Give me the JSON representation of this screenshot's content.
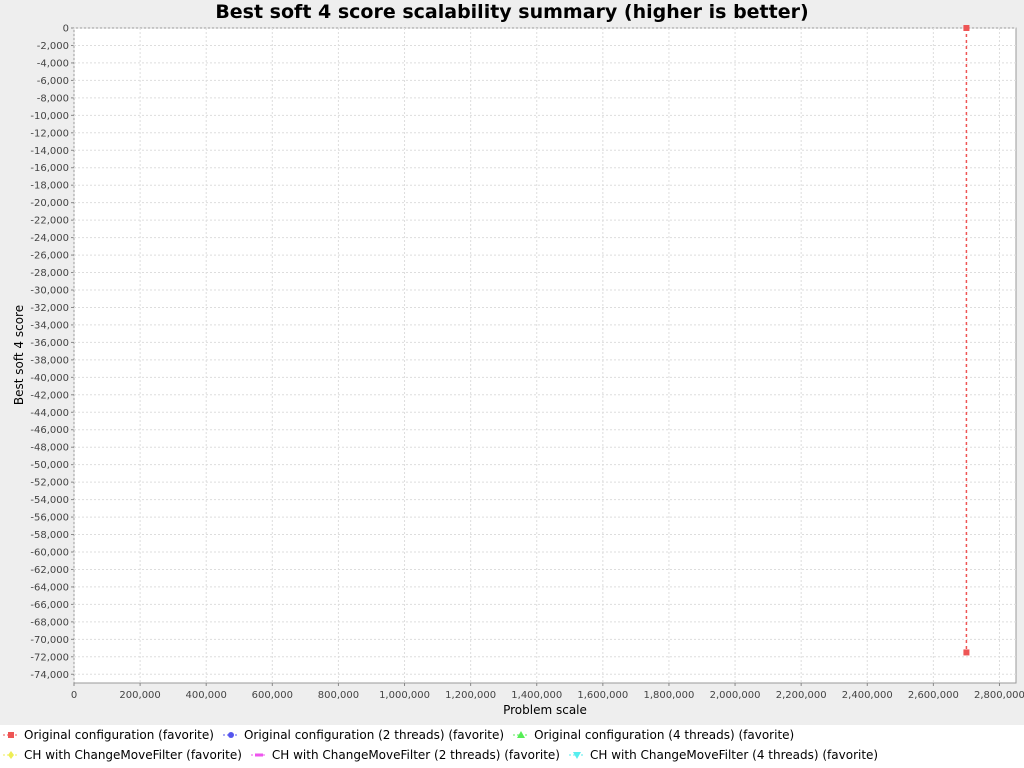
{
  "chart_data": {
    "type": "line",
    "title": "Best soft 4 score scalability summary (higher is better)",
    "xlabel": "Problem scale",
    "ylabel": "Best soft 4 score",
    "xlim": [
      0,
      2850000
    ],
    "ylim": [
      -75000,
      0
    ],
    "x_ticks": [
      "0",
      "200,000",
      "400,000",
      "600,000",
      "800,000",
      "1,000,000",
      "1,200,000",
      "1,400,000",
      "1,600,000",
      "1,800,000",
      "2,000,000",
      "2,200,000",
      "2,400,000",
      "2,600,000",
      "2,800,000"
    ],
    "y_ticks": [
      "0",
      "-2,000",
      "-4,000",
      "-6,000",
      "-8,000",
      "-10,000",
      "-12,000",
      "-14,000",
      "-16,000",
      "-18,000",
      "-20,000",
      "-22,000",
      "-24,000",
      "-26,000",
      "-28,000",
      "-30,000",
      "-32,000",
      "-34,000",
      "-36,000",
      "-38,000",
      "-40,000",
      "-42,000",
      "-44,000",
      "-46,000",
      "-48,000",
      "-50,000",
      "-52,000",
      "-54,000",
      "-56,000",
      "-58,000",
      "-60,000",
      "-62,000",
      "-64,000",
      "-66,000",
      "-68,000",
      "-70,000",
      "-72,000",
      "-74,000"
    ],
    "grid": true,
    "legend_position": "bottom",
    "series": [
      {
        "name": "Original configuration (favorite)",
        "color": "#ee5555",
        "marker": "square",
        "points": [
          [
            2700000,
            0
          ],
          [
            2700000,
            -71500
          ]
        ]
      },
      {
        "name": "Original configuration (2 threads) (favorite)",
        "color": "#5555ee",
        "marker": "circle",
        "points": []
      },
      {
        "name": "Original configuration (4 threads) (favorite)",
        "color": "#55ee55",
        "marker": "triangle-up",
        "points": []
      },
      {
        "name": "CH with ChangeMoveFilter (favorite)",
        "color": "#eeee55",
        "marker": "diamond",
        "points": []
      },
      {
        "name": "CH with ChangeMoveFilter (2 threads) (favorite)",
        "color": "#ee55ee",
        "marker": "rect-h",
        "points": []
      },
      {
        "name": "CH with ChangeMoveFilter (4 threads) (favorite)",
        "color": "#55eeee",
        "marker": "triangle-down",
        "points": []
      }
    ]
  }
}
